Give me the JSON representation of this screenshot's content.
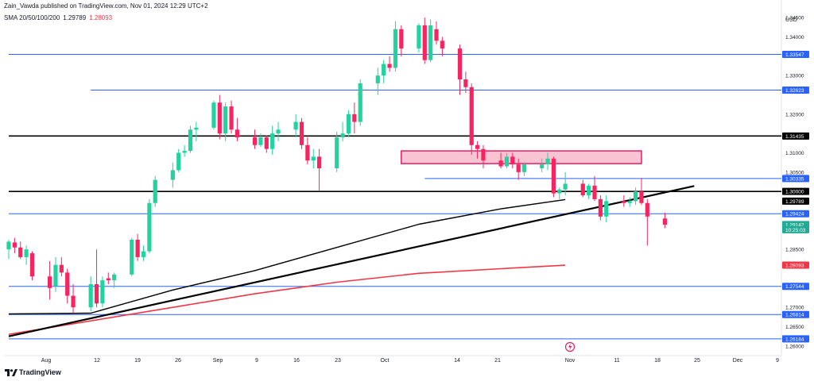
{
  "header": {
    "publisher": "Zain_Vawda published on TradingView.com, Nov 01, 2024 12:29 UTC+2",
    "indicator_name": "SMA 20/50/100/200",
    "indicator_value_1": "1.29789",
    "indicator_value_2": "1.28093"
  },
  "footer": {
    "logo_text": "TradingView"
  },
  "colors": {
    "up": "#22d3a0",
    "down": "#f7245f",
    "sma_black": "#000000",
    "sma_red": "#f23645",
    "level_blue": "#2962ff",
    "zone_fill": "#f8c3d3",
    "zone_border": "#e91e63"
  },
  "chart_data": {
    "type": "candlestick",
    "currency_label": "USD",
    "ylim": [
      1.2575,
      1.3475
    ],
    "y_ticks": [
      "1.34500",
      "1.34000",
      "1.33000",
      "1.32000",
      "1.31000",
      "1.30500",
      "1.28500",
      "1.27000",
      "1.26500",
      "1.26000"
    ],
    "x_ticks": [
      "Aug",
      "12",
      "19",
      "26",
      "Sep",
      "9",
      "16",
      "23",
      "Oct",
      "14",
      "21",
      "Nov",
      "11",
      "18",
      "25",
      "Dec",
      "9"
    ],
    "price_labels": [
      {
        "text": "1.33547",
        "value": 1.33547,
        "style": "blue"
      },
      {
        "text": "1.32623",
        "value": 1.32623,
        "style": "blue"
      },
      {
        "text": "1.31435",
        "value": 1.31435,
        "style": "black"
      },
      {
        "text": "1.30335",
        "value": 1.30335,
        "style": "blue"
      },
      {
        "text": "1.30000",
        "value": 1.3,
        "style": "black"
      },
      {
        "text": "1.29789",
        "value": 1.29789,
        "style": "black"
      },
      {
        "text": "1.29424",
        "value": 1.29424,
        "style": "blue"
      },
      {
        "text": "1.29142",
        "value": 1.29142,
        "style": "green"
      },
      {
        "text": "10:25:03",
        "value": 1.2901,
        "style": "green-sub"
      },
      {
        "text": "1.28093",
        "value": 1.28093,
        "style": "red"
      },
      {
        "text": "1.27544",
        "value": 1.27544,
        "style": "blue"
      },
      {
        "text": "1.26814",
        "value": 1.26814,
        "style": "blue"
      },
      {
        "text": "1.26184",
        "value": 1.26184,
        "style": "blue"
      }
    ],
    "horizontal_levels": [
      {
        "value": 1.33547,
        "color": "blue",
        "from_date": "2024-07-29"
      },
      {
        "value": 1.32623,
        "color": "blue",
        "from_date": "2024-08-12"
      },
      {
        "value": 1.31435,
        "color": "black",
        "from_date": "2024-07-29"
      },
      {
        "value": 1.30335,
        "color": "blue",
        "from_date": "2024-10-08"
      },
      {
        "value": 1.3,
        "color": "black",
        "from_date": "2024-07-29"
      },
      {
        "value": 1.29424,
        "color": "blue",
        "from_date": "2024-07-29"
      },
      {
        "value": 1.27544,
        "color": "blue",
        "from_date": "2024-07-29"
      },
      {
        "value": 1.26814,
        "color": "blue",
        "from_date": "2024-07-29"
      },
      {
        "value": 1.26184,
        "color": "blue",
        "from_date": "2024-07-29"
      }
    ],
    "zone": {
      "date_from": "2024-10-04",
      "date_to": "2024-11-14",
      "top": 1.3105,
      "bottom": 1.3072
    },
    "trendline": {
      "from": {
        "date": "2024-07-29",
        "value": 1.2625
      },
      "to": {
        "date": "2024-11-23",
        "value": 1.3014
      }
    },
    "sma_black": [
      {
        "date": "2024-07-29",
        "value": 1.2683
      },
      {
        "date": "2024-08-12",
        "value": 1.2685
      },
      {
        "date": "2024-08-26",
        "value": 1.2745
      },
      {
        "date": "2024-09-09",
        "value": 1.2795
      },
      {
        "date": "2024-09-23",
        "value": 1.2855
      },
      {
        "date": "2024-10-07",
        "value": 1.2915
      },
      {
        "date": "2024-10-21",
        "value": 1.2955
      },
      {
        "date": "2024-11-01",
        "value": 1.2979
      }
    ],
    "sma_red": [
      {
        "date": "2024-07-29",
        "value": 1.263
      },
      {
        "date": "2024-08-12",
        "value": 1.2665
      },
      {
        "date": "2024-08-26",
        "value": 1.27
      },
      {
        "date": "2024-09-09",
        "value": 1.2735
      },
      {
        "date": "2024-09-23",
        "value": 1.2765
      },
      {
        "date": "2024-10-07",
        "value": 1.2788
      },
      {
        "date": "2024-10-21",
        "value": 1.28
      },
      {
        "date": "2024-11-01",
        "value": 1.2809
      }
    ],
    "candles": [
      {
        "date": "2024-07-29",
        "o": 1.285,
        "h": 1.2875,
        "l": 1.2825,
        "c": 1.287
      },
      {
        "date": "2024-07-30",
        "o": 1.2868,
        "h": 1.288,
        "l": 1.284,
        "c": 1.2855
      },
      {
        "date": "2024-07-31",
        "o": 1.2855,
        "h": 1.287,
        "l": 1.2825,
        "c": 1.283
      },
      {
        "date": "2024-08-01",
        "o": 1.283,
        "h": 1.286,
        "l": 1.281,
        "c": 1.285
      },
      {
        "date": "2024-08-02",
        "o": 1.284,
        "h": 1.2845,
        "l": 1.277,
        "c": 1.278
      },
      {
        "date": "2024-08-05",
        "o": 1.278,
        "h": 1.282,
        "l": 1.272,
        "c": 1.275
      },
      {
        "date": "2024-08-06",
        "o": 1.2755,
        "h": 1.283,
        "l": 1.274,
        "c": 1.281
      },
      {
        "date": "2024-08-07",
        "o": 1.281,
        "h": 1.283,
        "l": 1.278,
        "c": 1.279
      },
      {
        "date": "2024-08-08",
        "o": 1.279,
        "h": 1.28,
        "l": 1.271,
        "c": 1.273
      },
      {
        "date": "2024-08-09",
        "o": 1.273,
        "h": 1.276,
        "l": 1.2685,
        "c": 1.27
      },
      {
        "date": "2024-08-12",
        "o": 1.27,
        "h": 1.278,
        "l": 1.269,
        "c": 1.276
      },
      {
        "date": "2024-08-13",
        "o": 1.276,
        "h": 1.285,
        "l": 1.27,
        "c": 1.271
      },
      {
        "date": "2024-08-14",
        "o": 1.271,
        "h": 1.278,
        "l": 1.27,
        "c": 1.277
      },
      {
        "date": "2024-08-15",
        "o": 1.2775,
        "h": 1.279,
        "l": 1.276,
        "c": 1.277
      },
      {
        "date": "2024-08-16",
        "o": 1.277,
        "h": 1.279,
        "l": 1.275,
        "c": 1.2785
      },
      {
        "date": "2024-08-19",
        "o": 1.2785,
        "h": 1.288,
        "l": 1.278,
        "c": 1.2875
      },
      {
        "date": "2024-08-20",
        "o": 1.2875,
        "h": 1.289,
        "l": 1.282,
        "c": 1.283
      },
      {
        "date": "2024-08-21",
        "o": 1.283,
        "h": 1.286,
        "l": 1.282,
        "c": 1.2845
      },
      {
        "date": "2024-08-22",
        "o": 1.2845,
        "h": 1.298,
        "l": 1.284,
        "c": 1.297
      },
      {
        "date": "2024-08-23",
        "o": 1.297,
        "h": 1.304,
        "l": 1.296,
        "c": 1.303
      },
      {
        "date": "2024-08-26",
        "o": 1.303,
        "h": 1.3075,
        "l": 1.301,
        "c": 1.3055
      },
      {
        "date": "2024-08-27",
        "o": 1.3055,
        "h": 1.311,
        "l": 1.305,
        "c": 1.31
      },
      {
        "date": "2024-08-28",
        "o": 1.31,
        "h": 1.312,
        "l": 1.309,
        "c": 1.3105
      },
      {
        "date": "2024-08-29",
        "o": 1.3105,
        "h": 1.317,
        "l": 1.31,
        "c": 1.316
      },
      {
        "date": "2024-08-30",
        "o": 1.316,
        "h": 1.318,
        "l": 1.313,
        "c": 1.3165
      },
      {
        "date": "2024-09-02",
        "o": 1.3165,
        "h": 1.3235,
        "l": 1.316,
        "c": 1.323
      },
      {
        "date": "2024-09-03",
        "o": 1.323,
        "h": 1.325,
        "l": 1.3135,
        "c": 1.315
      },
      {
        "date": "2024-09-04",
        "o": 1.315,
        "h": 1.323,
        "l": 1.313,
        "c": 1.322
      },
      {
        "date": "2024-09-05",
        "o": 1.322,
        "h": 1.3235,
        "l": 1.315,
        "c": 1.316
      },
      {
        "date": "2024-09-06",
        "o": 1.316,
        "h": 1.319,
        "l": 1.313,
        "c": 1.314
      },
      {
        "date": "2024-09-09",
        "o": 1.314,
        "h": 1.316,
        "l": 1.311,
        "c": 1.312
      },
      {
        "date": "2024-09-10",
        "o": 1.312,
        "h": 1.315,
        "l": 1.3115,
        "c": 1.314
      },
      {
        "date": "2024-09-11",
        "o": 1.314,
        "h": 1.3145,
        "l": 1.31,
        "c": 1.311
      },
      {
        "date": "2024-09-12",
        "o": 1.311,
        "h": 1.317,
        "l": 1.3095,
        "c": 1.315
      },
      {
        "date": "2024-09-13",
        "o": 1.315,
        "h": 1.318,
        "l": 1.313,
        "c": 1.316
      },
      {
        "date": "2024-09-16",
        "o": 1.316,
        "h": 1.32,
        "l": 1.314,
        "c": 1.318
      },
      {
        "date": "2024-09-17",
        "o": 1.318,
        "h": 1.319,
        "l": 1.311,
        "c": 1.312
      },
      {
        "date": "2024-09-18",
        "o": 1.312,
        "h": 1.314,
        "l": 1.307,
        "c": 1.308
      },
      {
        "date": "2024-09-19",
        "o": 1.308,
        "h": 1.311,
        "l": 1.306,
        "c": 1.309
      },
      {
        "date": "2024-09-20",
        "o": 1.309,
        "h": 1.311,
        "l": 1.3,
        "c": 1.306
      },
      {
        "date": "2024-09-23",
        "o": 1.306,
        "h": 1.3155,
        "l": 1.305,
        "c": 1.314
      },
      {
        "date": "2024-09-24",
        "o": 1.314,
        "h": 1.318,
        "l": 1.313,
        "c": 1.315
      },
      {
        "date": "2024-09-25",
        "o": 1.315,
        "h": 1.321,
        "l": 1.314,
        "c": 1.32
      },
      {
        "date": "2024-09-26",
        "o": 1.32,
        "h": 1.323,
        "l": 1.315,
        "c": 1.318
      },
      {
        "date": "2024-09-27",
        "o": 1.318,
        "h": 1.329,
        "l": 1.317,
        "c": 1.328
      },
      {
        "date": "2024-09-30",
        "o": 1.328,
        "h": 1.332,
        "l": 1.325,
        "c": 1.33
      },
      {
        "date": "2024-10-01",
        "o": 1.33,
        "h": 1.334,
        "l": 1.328,
        "c": 1.333
      },
      {
        "date": "2024-10-02",
        "o": 1.333,
        "h": 1.335,
        "l": 1.331,
        "c": 1.332
      },
      {
        "date": "2024-10-03",
        "o": 1.332,
        "h": 1.344,
        "l": 1.331,
        "c": 1.342
      },
      {
        "date": "2024-10-04",
        "o": 1.342,
        "h": 1.343,
        "l": 1.335,
        "c": 1.337
      },
      {
        "date": "2024-10-07",
        "o": 1.337,
        "h": 1.3435,
        "l": 1.336,
        "c": 1.343
      },
      {
        "date": "2024-10-08",
        "o": 1.343,
        "h": 1.345,
        "l": 1.333,
        "c": 1.334
      },
      {
        "date": "2024-10-09",
        "o": 1.334,
        "h": 1.3445,
        "l": 1.3335,
        "c": 1.343
      },
      {
        "date": "2024-10-10",
        "o": 1.342,
        "h": 1.344,
        "l": 1.338,
        "c": 1.339
      },
      {
        "date": "2024-10-11",
        "o": 1.339,
        "h": 1.34,
        "l": 1.335,
        "c": 1.337
      },
      {
        "date": "2024-10-14",
        "o": 1.337,
        "h": 1.338,
        "l": 1.325,
        "c": 1.329
      },
      {
        "date": "2024-10-15",
        "o": 1.329,
        "h": 1.331,
        "l": 1.3255,
        "c": 1.327
      },
      {
        "date": "2024-10-16",
        "o": 1.327,
        "h": 1.328,
        "l": 1.3095,
        "c": 1.312
      },
      {
        "date": "2024-10-17",
        "o": 1.312,
        "h": 1.313,
        "l": 1.3085,
        "c": 1.311
      },
      {
        "date": "2024-10-18",
        "o": 1.311,
        "h": 1.312,
        "l": 1.306,
        "c": 1.308
      },
      {
        "date": "2024-10-21",
        "o": 1.308,
        "h": 1.31,
        "l": 1.306,
        "c": 1.3065
      },
      {
        "date": "2024-10-22",
        "o": 1.3065,
        "h": 1.31,
        "l": 1.306,
        "c": 1.309
      },
      {
        "date": "2024-10-23",
        "o": 1.309,
        "h": 1.31,
        "l": 1.306,
        "c": 1.307
      },
      {
        "date": "2024-10-24",
        "o": 1.307,
        "h": 1.3085,
        "l": 1.303,
        "c": 1.305
      },
      {
        "date": "2024-10-25",
        "o": 1.305,
        "h": 1.3075,
        "l": 1.304,
        "c": 1.307
      },
      {
        "date": "2024-10-28",
        "o": 1.306,
        "h": 1.3085,
        "l": 1.305,
        "c": 1.307
      },
      {
        "date": "2024-10-29",
        "o": 1.307,
        "h": 1.31,
        "l": 1.3055,
        "c": 1.3085
      },
      {
        "date": "2024-10-30",
        "o": 1.3085,
        "h": 1.309,
        "l": 1.2985,
        "c": 1.2995
      },
      {
        "date": "2024-10-31",
        "o": 1.2995,
        "h": 1.301,
        "l": 1.298,
        "c": 1.3005
      },
      {
        "date": "2024-11-01",
        "o": 1.3005,
        "h": 1.305,
        "l": 1.299,
        "c": 1.302
      },
      {
        "date": "2024-11-04",
        "o": 1.302,
        "h": 1.303,
        "l": 1.2985,
        "c": 1.299
      },
      {
        "date": "2024-11-05",
        "o": 1.299,
        "h": 1.302,
        "l": 1.298,
        "c": 1.3015
      },
      {
        "date": "2024-11-06",
        "o": 1.3015,
        "h": 1.304,
        "l": 1.2975,
        "c": 1.298
      },
      {
        "date": "2024-11-07",
        "o": 1.298,
        "h": 1.299,
        "l": 1.2925,
        "c": 1.2935
      },
      {
        "date": "2024-11-08",
        "o": 1.2935,
        "h": 1.299,
        "l": 1.292,
        "c": 1.2975
      },
      {
        "date": "2024-11-11",
        "o": 1.2975,
        "h": 1.299,
        "l": 1.296,
        "c": 1.297
      },
      {
        "date": "2024-11-12",
        "o": 1.297,
        "h": 1.2985,
        "l": 1.296,
        "c": 1.2975
      },
      {
        "date": "2024-11-13",
        "o": 1.2975,
        "h": 1.301,
        "l": 1.2965,
        "c": 1.3
      },
      {
        "date": "2024-11-14",
        "o": 1.3,
        "h": 1.3035,
        "l": 1.2965,
        "c": 1.297
      },
      {
        "date": "2024-11-15",
        "o": 1.297,
        "h": 1.298,
        "l": 1.286,
        "c": 1.2935
      },
      {
        "date": "2024-11-18",
        "o": 1.293,
        "h": 1.2945,
        "l": 1.2905,
        "c": 1.2914
      }
    ]
  }
}
